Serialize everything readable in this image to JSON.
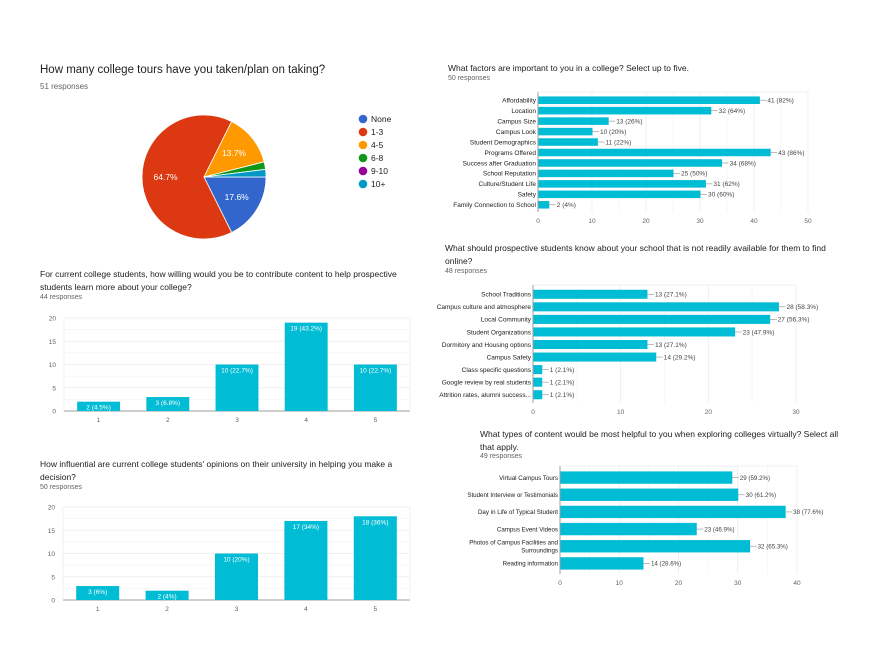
{
  "charts_meta": {
    "pie": {
      "title": "How many college tours have you taken/plan on taking?",
      "responses": "51 responses"
    },
    "factors": {
      "title": "What factors are important to you in a college?  Select up to five.",
      "responses": "50 responses"
    },
    "willing": {
      "title": "For current college students, how willing would you be to contribute content to help prospective students learn more about your college?",
      "responses": "44 responses"
    },
    "know": {
      "title": "What should prospective students know about your school that is not readily available for them to find online?",
      "responses": "48 responses"
    },
    "content": {
      "title": "What types of content would be most helpful to you when exploring colleges virtually? Select all that apply.",
      "responses": "49 responses"
    },
    "influence": {
      "title": "How influential are current college students' opinions on their university in helping you make a decision?",
      "responses": "50 responses"
    }
  },
  "chart_data": [
    {
      "id": "pie",
      "type": "pie",
      "title": "How many college tours have you taken/plan on taking?",
      "categories": [
        "None",
        "1-3",
        "4-5",
        "6-8",
        "9-10",
        "10+"
      ],
      "values": [
        9,
        33,
        7,
        1,
        0,
        1
      ],
      "labels": [
        "17.6%",
        "64.7%",
        "13.7%",
        "",
        "",
        ""
      ],
      "colors": [
        "#3366cc",
        "#dc3912",
        "#ff9900",
        "#109618",
        "#990099",
        "#0099c6"
      ],
      "legend": "right"
    },
    {
      "id": "factors",
      "type": "bar",
      "orientation": "horizontal",
      "title": "What factors are important to you in a college?  Select up to five.",
      "categories": [
        "Affordability",
        "Location",
        "Campus Size",
        "Campus Look",
        "Student Demographics",
        "Programs Offered",
        "Success after Graduation",
        "School Reputation",
        "Culture/Student Life",
        "Safety",
        "Family Connection to School"
      ],
      "values": [
        41,
        32,
        13,
        10,
        11,
        43,
        34,
        25,
        31,
        30,
        2
      ],
      "data_labels": [
        "41 (82%)",
        "32 (64%)",
        "13 (26%)",
        "10 (20%)",
        "11 (22%)",
        "43 (86%)",
        "34 (68%)",
        "25 (50%)",
        "31 (62%)",
        "30 (60%)",
        "2 (4%)"
      ],
      "xticks": [
        0,
        10,
        20,
        30,
        40,
        50
      ],
      "xlim": [
        0,
        50
      ],
      "color": "#00bcd4"
    },
    {
      "id": "willing",
      "type": "bar",
      "orientation": "vertical",
      "title": "For current college students, how willing would you be to contribute content to help prospective students learn more about your college?",
      "categories": [
        "1",
        "2",
        "3",
        "4",
        "5"
      ],
      "values": [
        2,
        3,
        10,
        19,
        10
      ],
      "data_labels": [
        "2 (4.5%)",
        "3 (6.8%)",
        "10 (22.7%)",
        "19 (43.2%)",
        "10 (22.7%)"
      ],
      "yticks": [
        0,
        5,
        10,
        15,
        20
      ],
      "ylim": [
        0,
        20
      ],
      "color": "#00bcd4"
    },
    {
      "id": "know",
      "type": "bar",
      "orientation": "horizontal",
      "title": "What should prospective students know about your school that is not readily available for them to find online?",
      "categories": [
        "School Traditions",
        "Campus culture and atmosphere",
        "Local Community",
        "Student Organizations",
        "Dormitory and Housing options",
        "Campus Safety",
        "Class specific questions",
        "Google review by real students",
        "Attrition rates, alumni success..."
      ],
      "values": [
        13,
        28,
        27,
        23,
        13,
        14,
        1,
        1,
        1
      ],
      "data_labels": [
        "13 (27.1%)",
        "28 (58.3%)",
        "27 (56.3%)",
        "23 (47.9%)",
        "13 (27.1%)",
        "14 (29.2%)",
        "1 (2.1%)",
        "1 (2.1%)",
        "1 (2.1%)"
      ],
      "xticks": [
        0,
        10,
        20,
        30
      ],
      "xlim": [
        0,
        30
      ],
      "color": "#00bcd4"
    },
    {
      "id": "content",
      "type": "bar",
      "orientation": "horizontal",
      "title": "What types of content would be most helpful to you when exploring colleges virtually? Select all that apply.",
      "categories": [
        "Virtual Campus Tours",
        "Student Interview or Testimonials",
        "Day in Life of Typical Student",
        "Campus Event Videos",
        "Photos of Campus Facilities and Surroundings",
        "Reading information"
      ],
      "values": [
        29,
        30,
        38,
        23,
        32,
        14
      ],
      "data_labels": [
        "29 (59.2%)",
        "30 (61.2%)",
        "38 (77.6%)",
        "23 (46.9%)",
        "32 (65.3%)",
        "14 (28.6%)"
      ],
      "xticks": [
        0,
        10,
        20,
        30,
        40
      ],
      "xlim": [
        0,
        40
      ],
      "color": "#00bcd4"
    },
    {
      "id": "influence",
      "type": "bar",
      "orientation": "vertical",
      "title": "How influential are current college students' opinions on their university in helping you make a decision?",
      "categories": [
        "1",
        "2",
        "3",
        "4",
        "5"
      ],
      "values": [
        3,
        2,
        10,
        17,
        18
      ],
      "data_labels": [
        "3 (6%)",
        "2 (4%)",
        "10 (20%)",
        "17 (34%)",
        "18 (36%)"
      ],
      "yticks": [
        0,
        5,
        10,
        15,
        20
      ],
      "ylim": [
        0,
        20
      ],
      "color": "#00bcd4"
    }
  ]
}
